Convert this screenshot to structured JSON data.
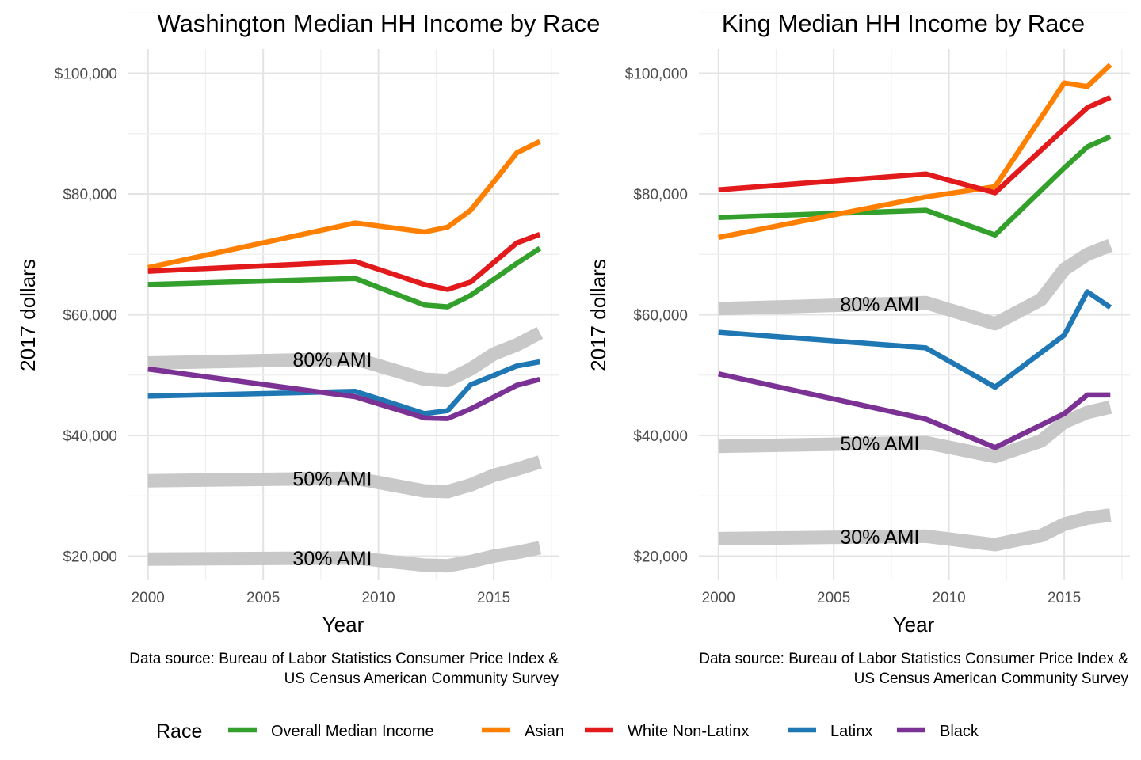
{
  "chart_data": [
    {
      "type": "line",
      "title": "Washington Median HH Income by Race",
      "xlabel": "Year",
      "ylabel": "2017 dollars",
      "xlim": [
        2000,
        2017
      ],
      "ylim": [
        16000,
        104000
      ],
      "x_ticks": [
        2000,
        2005,
        2010,
        2015
      ],
      "x_tick_labels": [
        "2000",
        "2005",
        "2010",
        "2015"
      ],
      "y_ticks": [
        20000,
        40000,
        60000,
        80000,
        100000
      ],
      "y_tick_labels": [
        "$20,000",
        "$40,000",
        "$60,000",
        "$80,000",
        "$100,000"
      ],
      "grid": true,
      "caption": [
        "Data source: Bureau of Labor Statistics Consumer Price Index &",
        "US Census American Community Survey"
      ],
      "ami_bands": [
        {
          "label": "80% AMI",
          "label_x": 2008,
          "x": [
            2000,
            2009,
            2012,
            2013,
            2014,
            2015,
            2016,
            2017
          ],
          "y": [
            52000,
            52700,
            49300,
            49100,
            51000,
            53500,
            55000,
            57000
          ]
        },
        {
          "label": "50% AMI",
          "label_x": 2008,
          "x": [
            2000,
            2009,
            2012,
            2013,
            2014,
            2015,
            2016,
            2017
          ],
          "y": [
            32500,
            32900,
            30800,
            30700,
            31800,
            33400,
            34400,
            35600
          ]
        },
        {
          "label": "30% AMI",
          "label_x": 2008,
          "x": [
            2000,
            2009,
            2012,
            2013,
            2014,
            2015,
            2016,
            2017
          ],
          "y": [
            19500,
            19700,
            18500,
            18400,
            19100,
            20000,
            20600,
            21400
          ]
        }
      ],
      "series": [
        {
          "name": "Overall Median Income",
          "x": [
            2000,
            2009,
            2012,
            2013,
            2014,
            2016,
            2017
          ],
          "y": [
            65000,
            66000,
            61600,
            61300,
            63200,
            68500,
            71000
          ]
        },
        {
          "name": "Asian",
          "x": [
            2000,
            2009,
            2012,
            2013,
            2014,
            2015,
            2016,
            2017
          ],
          "y": [
            67800,
            75200,
            73700,
            74500,
            77300,
            82000,
            86800,
            88700
          ]
        },
        {
          "name": "White Non-Latinx",
          "x": [
            2000,
            2009,
            2012,
            2013,
            2014,
            2016,
            2017
          ],
          "y": [
            67200,
            68800,
            65000,
            64200,
            65400,
            71900,
            73300
          ]
        },
        {
          "name": "Latinx",
          "x": [
            2000,
            2009,
            2012,
            2013,
            2014,
            2016,
            2017
          ],
          "y": [
            46500,
            47300,
            43600,
            44100,
            48400,
            51500,
            52200
          ]
        },
        {
          "name": "Black",
          "x": [
            2000,
            2009,
            2012,
            2013,
            2014,
            2016,
            2017
          ],
          "y": [
            51000,
            46400,
            42900,
            42800,
            44400,
            48300,
            49300
          ]
        }
      ]
    },
    {
      "type": "line",
      "title": "King Median HH Income by Race",
      "xlabel": "Year",
      "ylabel": "2017 dollars",
      "xlim": [
        2000,
        2017
      ],
      "ylim": [
        16000,
        104000
      ],
      "x_ticks": [
        2000,
        2005,
        2010,
        2015
      ],
      "x_tick_labels": [
        "2000",
        "2005",
        "2010",
        "2015"
      ],
      "y_ticks": [
        20000,
        40000,
        60000,
        80000,
        100000
      ],
      "y_tick_labels": [
        "$20,000",
        "$40,000",
        "$60,000",
        "$80,000",
        "$100,000"
      ],
      "grid": true,
      "caption": [
        "Data source: Bureau of Labor Statistics Consumer Price Index &",
        "US Census American Community Survey"
      ],
      "ami_bands": [
        {
          "label": "80% AMI",
          "label_x": 2007,
          "x": [
            2000,
            2009,
            2012,
            2013,
            2014,
            2015,
            2016,
            2017
          ],
          "y": [
            61000,
            62000,
            58500,
            60500,
            62500,
            67500,
            70000,
            71500
          ]
        },
        {
          "label": "50% AMI",
          "label_x": 2007,
          "x": [
            2000,
            2009,
            2012,
            2013,
            2014,
            2015,
            2016,
            2017
          ],
          "y": [
            38200,
            38800,
            36500,
            37800,
            39100,
            42200,
            43800,
            44700
          ]
        },
        {
          "label": "30% AMI",
          "label_x": 2007,
          "x": [
            2000,
            2009,
            2012,
            2013,
            2014,
            2015,
            2016,
            2017
          ],
          "y": [
            22900,
            23300,
            21900,
            22700,
            23400,
            25300,
            26300,
            26800
          ]
        }
      ],
      "series": [
        {
          "name": "Overall Median Income",
          "x": [
            2000,
            2009,
            2012,
            2015,
            2016,
            2017
          ],
          "y": [
            76100,
            77300,
            73200,
            84300,
            87800,
            89500
          ]
        },
        {
          "name": "Asian",
          "x": [
            2000,
            2009,
            2012,
            2015,
            2016,
            2017
          ],
          "y": [
            72800,
            79500,
            81200,
            98400,
            97800,
            101400
          ]
        },
        {
          "name": "White Non-Latinx",
          "x": [
            2000,
            2009,
            2012,
            2015,
            2016,
            2017
          ],
          "y": [
            80700,
            83300,
            80200,
            90800,
            94300,
            96000
          ]
        },
        {
          "name": "Latinx",
          "x": [
            2000,
            2009,
            2012,
            2015,
            2016,
            2017
          ],
          "y": [
            57100,
            54500,
            48000,
            56600,
            63800,
            61200
          ]
        },
        {
          "name": "Black",
          "x": [
            2000,
            2009,
            2012,
            2015,
            2016,
            2017
          ],
          "y": [
            50200,
            42700,
            38000,
            43600,
            46700,
            46700
          ]
        }
      ]
    }
  ],
  "legend": {
    "title": "Race",
    "placement": "bottom",
    "items": [
      {
        "label": "Overall Median Income",
        "color": "#33a02c"
      },
      {
        "label": "Asian",
        "color": "#ff7f00"
      },
      {
        "label": "White Non-Latinx",
        "color": "#e31a1c"
      },
      {
        "label": "Latinx",
        "color": "#1f78b4"
      },
      {
        "label": "Black",
        "color": "#7b3294"
      }
    ]
  },
  "colors": {
    "Overall Median Income": "#33a02c",
    "Asian": "#ff7f00",
    "White Non-Latinx": "#e31a1c",
    "Latinx": "#1f78b4",
    "Black": "#7b3294",
    "ami_band": "#c8c8c8"
  }
}
